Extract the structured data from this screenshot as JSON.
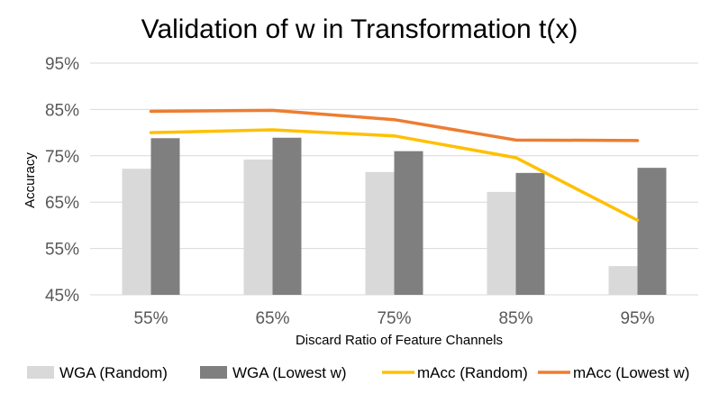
{
  "chart_data": {
    "type": "bar",
    "title": "Validation of w in Transformation t(x)",
    "xlabel": "Discard Ratio of Feature Channels",
    "ylabel": "Accuracy",
    "ylim": [
      45,
      95
    ],
    "yticks": [
      45,
      55,
      65,
      75,
      85,
      95
    ],
    "ytick_labels": [
      "45%",
      "55%",
      "65%",
      "75%",
      "85%",
      "95%"
    ],
    "categories": [
      "55%",
      "65%",
      "75%",
      "85%",
      "95%"
    ],
    "bar_series": [
      {
        "name": "WGA (Random)",
        "color": "#d9d9d9",
        "values": [
          72.2,
          74.2,
          71.5,
          67.2,
          51.2
        ]
      },
      {
        "name": "WGA (Lowest w)",
        "color": "#7f7f7f",
        "values": [
          78.8,
          78.9,
          76.0,
          71.3,
          72.4
        ]
      }
    ],
    "line_series": [
      {
        "name": "mAcc (Random)",
        "color": "#ffc000",
        "values": [
          80.0,
          80.6,
          79.3,
          74.6,
          61.1
        ]
      },
      {
        "name": "mAcc (Lowest w)",
        "color": "#ed7d31",
        "values": [
          84.6,
          84.8,
          82.8,
          78.4,
          78.3
        ]
      }
    ],
    "grid": true,
    "legend_position": "bottom"
  }
}
